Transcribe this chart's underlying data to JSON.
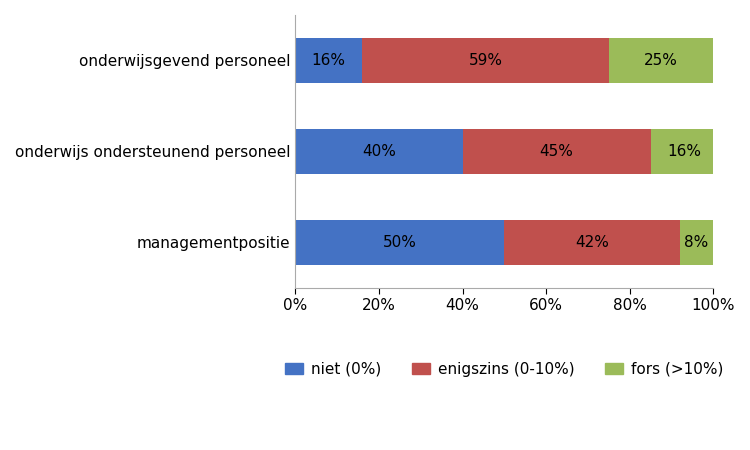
{
  "categories": [
    "onderwijsgevend personeel",
    "onderwijs ondersteunend personeel",
    "managementpositie"
  ],
  "series": {
    "niet (0%)": [
      16,
      40,
      50
    ],
    "enigszins (0-10%)": [
      59,
      45,
      42
    ],
    "fors (>10%)": [
      25,
      16,
      8
    ]
  },
  "colors": {
    "niet (0%)": "#4472C4",
    "enigszins (0-10%)": "#C0504D",
    "fors (>10%)": "#9BBB59"
  },
  "legend_labels": [
    "niet (0%)",
    "enigszins (0-10%)",
    "fors (>10%)"
  ],
  "bar_height": 0.5,
  "xlim": [
    0,
    100
  ],
  "xticks": [
    0,
    20,
    40,
    60,
    80,
    100
  ],
  "xtick_labels": [
    "0%",
    "20%",
    "40%",
    "60%",
    "80%",
    "100%"
  ],
  "label_fontsize": 11,
  "tick_fontsize": 11,
  "legend_fontsize": 11,
  "text_color": "black",
  "figsize": [
    7.5,
    4.5
  ],
  "dpi": 100
}
